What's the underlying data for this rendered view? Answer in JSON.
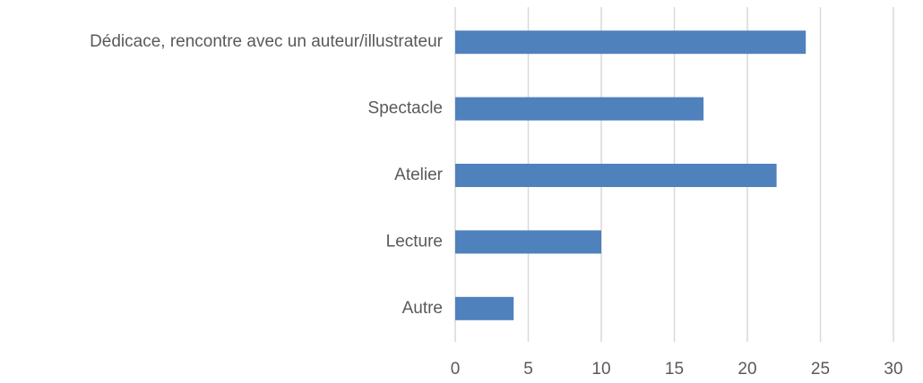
{
  "chart_data": {
    "type": "bar",
    "orientation": "horizontal",
    "categories": [
      "Dédicace, rencontre avec un auteur/illustrateur",
      "Spectacle",
      "Atelier",
      "Lecture",
      "Autre"
    ],
    "values": [
      24,
      17,
      22,
      10,
      4
    ],
    "color": "#4f81bd",
    "xlim": [
      0,
      30
    ],
    "xticks": [
      0,
      5,
      10,
      15,
      20,
      25,
      30
    ],
    "grid": true
  }
}
